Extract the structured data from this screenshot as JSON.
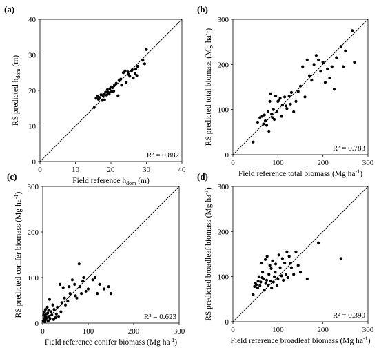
{
  "chart_data": [
    {
      "type": "scatter",
      "panel_label": "(a)",
      "title": "",
      "xlabel": {
        "pre": "Field  reference h",
        "sub": "dom",
        "post": " (m)"
      },
      "ylabel": {
        "pre": "RS predicted h",
        "sub": "dom",
        "post": " (m)"
      },
      "xlim": [
        0,
        40
      ],
      "ylim": [
        0,
        40
      ],
      "ticks": [
        0,
        10,
        20,
        30,
        40
      ],
      "r2": "R² = 0.882",
      "one_to_one_line": true,
      "x": [
        15.3,
        15.8,
        16.2,
        16.5,
        16.8,
        17.2,
        17.5,
        17.8,
        18.0,
        18.2,
        18.5,
        18.8,
        19.0,
        19.2,
        19.5,
        19.7,
        20.0,
        20.2,
        20.5,
        20.8,
        21.0,
        21.5,
        22.0,
        22.3,
        22.8,
        23.0,
        23.5,
        24.0,
        24.3,
        24.8,
        25.0,
        25.3,
        25.8,
        26.0,
        26.3,
        26.8,
        27.0,
        27.3,
        27.5,
        29.0,
        29.5,
        30.0
      ],
      "y": [
        15.2,
        17.8,
        18.3,
        17.5,
        18.0,
        18.8,
        17.2,
        18.5,
        19.0,
        17.3,
        19.5,
        18.7,
        20.2,
        19.5,
        19.0,
        20.5,
        21.0,
        19.6,
        20.8,
        19.8,
        21.5,
        22.0,
        18.5,
        22.8,
        23.2,
        21.5,
        25.0,
        25.5,
        22.3,
        25.2,
        24.5,
        24.0,
        25.5,
        25.8,
        23.5,
        24.8,
        26.0,
        24.2,
        26.8,
        28.5,
        27.5,
        31.5
      ]
    },
    {
      "type": "scatter",
      "panel_label": "(b)",
      "title": "",
      "xlabel": {
        "pre": "Field  reference total biomass (Mg ha",
        "sup": "-1",
        "post": ")"
      },
      "ylabel": {
        "pre": "RS predicted total biomass (Mg ha",
        "sup": "-1",
        "post": ")"
      },
      "xlim": [
        0,
        300
      ],
      "ylim": [
        0,
        300
      ],
      "ticks": [
        0,
        100,
        200,
        300
      ],
      "r2": "R² = 0.783",
      "one_to_one_line": true,
      "x": [
        45,
        55,
        60,
        65,
        68,
        70,
        72,
        75,
        78,
        80,
        82,
        84,
        86,
        88,
        90,
        92,
        95,
        98,
        100,
        102,
        105,
        108,
        110,
        115,
        118,
        120,
        125,
        128,
        130,
        135,
        140,
        145,
        150,
        155,
        160,
        165,
        170,
        175,
        180,
        185,
        190,
        195,
        200,
        205,
        210,
        215,
        220,
        225,
        230,
        240,
        245,
        250,
        265,
        270
      ],
      "y": [
        28,
        72,
        82,
        85,
        68,
        88,
        75,
        65,
        95,
        52,
        118,
        135,
        90,
        82,
        100,
        78,
        130,
        95,
        118,
        120,
        125,
        85,
        110,
        128,
        108,
        102,
        130,
        112,
        138,
        95,
        118,
        140,
        152,
        195,
        128,
        210,
        175,
        165,
        200,
        220,
        210,
        185,
        205,
        160,
        190,
        170,
        195,
        145,
        215,
        240,
        195,
        230,
        275,
        205
      ]
    },
    {
      "type": "scatter",
      "panel_label": "(c)",
      "title": "",
      "xlabel": {
        "pre": "Field  reference conifer biomass (Mg ha",
        "sup": "-1",
        "post": ")"
      },
      "ylabel": {
        "pre": "RS predicted conifer biomass (Mg ha",
        "sup": "-1",
        "post": ")"
      },
      "xlim": [
        0,
        300
      ],
      "ylim": [
        0,
        300
      ],
      "ticks": [
        0,
        100,
        200,
        300
      ],
      "r2": "R² = 0.623",
      "one_to_one_line": true,
      "x": [
        1,
        2,
        3,
        4,
        5,
        5,
        6,
        7,
        8,
        9,
        10,
        11,
        12,
        13,
        14,
        15,
        16,
        18,
        20,
        22,
        24,
        25,
        28,
        30,
        32,
        35,
        38,
        40,
        42,
        45,
        48,
        50,
        55,
        58,
        60,
        65,
        70,
        72,
        75,
        80,
        82,
        85,
        88,
        90,
        95,
        100,
        110,
        115,
        120,
        125,
        135,
        145,
        150
      ],
      "y": [
        5,
        18,
        10,
        25,
        3,
        15,
        30,
        8,
        20,
        12,
        35,
        22,
        5,
        28,
        15,
        52,
        10,
        25,
        18,
        40,
        8,
        30,
        12,
        20,
        35,
        15,
        85,
        25,
        45,
        78,
        55,
        40,
        48,
        80,
        65,
        95,
        85,
        60,
        55,
        130,
        80,
        65,
        92,
        100,
        70,
        75,
        95,
        100,
        65,
        85,
        75,
        80,
        65
      ]
    },
    {
      "type": "scatter",
      "panel_label": "(d)",
      "title": "",
      "xlabel": {
        "pre": "Field  reference broadleaf biomass (Mg ha",
        "sup": "-1",
        "post": ")"
      },
      "ylabel": {
        "pre": "RS predicted  broadleaf biomass (Mg ha",
        "sup": "-1",
        "post": ")"
      },
      "xlim": [
        0,
        300
      ],
      "ylim": [
        0,
        300
      ],
      "ticks": [
        0,
        100,
        200,
        300
      ],
      "r2": "R² = 0.390",
      "one_to_one_line": true,
      "x": [
        45,
        48,
        50,
        52,
        55,
        56,
        58,
        60,
        62,
        63,
        65,
        66,
        68,
        70,
        72,
        73,
        75,
        76,
        78,
        80,
        82,
        84,
        85,
        86,
        88,
        90,
        92,
        94,
        95,
        98,
        100,
        102,
        105,
        108,
        110,
        112,
        115,
        118,
        120,
        122,
        125,
        128,
        130,
        135,
        140,
        145,
        150,
        165,
        190,
        240
      ],
      "y": [
        60,
        78,
        85,
        82,
        75,
        90,
        100,
        80,
        88,
        130,
        98,
        110,
        95,
        70,
        138,
        85,
        92,
        145,
        80,
        105,
        125,
        90,
        118,
        75,
        135,
        88,
        100,
        110,
        128,
        80,
        95,
        148,
        120,
        102,
        140,
        92,
        130,
        105,
        155,
        98,
        145,
        130,
        120,
        105,
        155,
        125,
        110,
        95,
        175,
        140
      ]
    }
  ]
}
